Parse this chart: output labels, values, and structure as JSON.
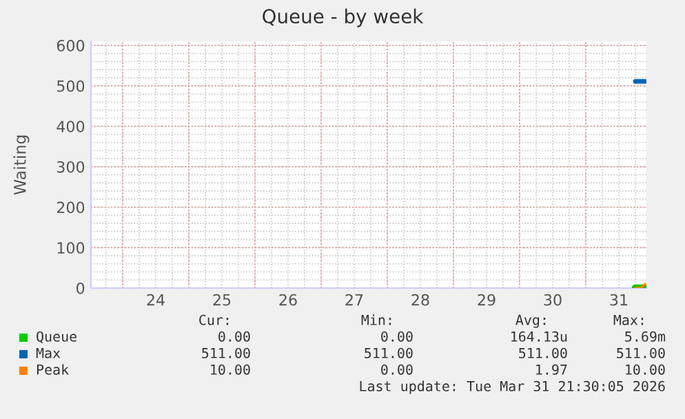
{
  "chart_data": {
    "type": "line",
    "title": "Queue - by week",
    "ylabel": "Waiting",
    "xlim": [
      "2026-03-23T12:30",
      "2026-03-31T22:00"
    ],
    "xticks": [
      {
        "value": "2026-03-24T00:00",
        "label": null
      },
      {
        "value": "2026-03-24T12:00",
        "label": "24"
      },
      {
        "value": "2026-03-25T00:00",
        "label": null
      },
      {
        "value": "2026-03-25T12:00",
        "label": "25"
      },
      {
        "value": "2026-03-26T00:00",
        "label": null
      },
      {
        "value": "2026-03-26T12:00",
        "label": "26"
      },
      {
        "value": "2026-03-27T00:00",
        "label": null
      },
      {
        "value": "2026-03-27T12:00",
        "label": "27"
      },
      {
        "value": "2026-03-28T00:00",
        "label": null
      },
      {
        "value": "2026-03-28T12:00",
        "label": "28"
      },
      {
        "value": "2026-03-29T00:00",
        "label": null
      },
      {
        "value": "2026-03-29T12:00",
        "label": "29"
      },
      {
        "value": "2026-03-30T00:00",
        "label": null
      },
      {
        "value": "2026-03-30T12:00",
        "label": "30"
      },
      {
        "value": "2026-03-31T00:00",
        "label": null
      },
      {
        "value": "2026-03-31T12:00",
        "label": "31"
      }
    ],
    "ylim": [
      0,
      610
    ],
    "yticks": [
      0,
      100,
      200,
      300,
      400,
      500,
      600
    ],
    "grid": true,
    "legend": "bottom left",
    "marker": "none",
    "line_style": "solid",
    "series": [
      {
        "name": "Queue",
        "color": "#00cc00",
        "x": [
          "2026-03-31T18:00",
          "2026-03-31T21:30"
        ],
        "values": [
          0,
          0
        ]
      },
      {
        "name": "Max",
        "color": "#0066b3",
        "x": [
          "2026-03-31T18:00",
          "2026-03-31T21:30"
        ],
        "values": [
          511,
          511
        ]
      },
      {
        "name": "Peak",
        "color": "#ff8000",
        "x": [
          "2026-03-31T18:00",
          "2026-03-31T20:00",
          "2026-03-31T21:30"
        ],
        "values": [
          0,
          0,
          10
        ]
      }
    ],
    "annotations": [
      "Cur:",
      "Min:",
      "Avg:",
      "Max:",
      "0.00",
      "0.00",
      "164.13u",
      "5.69m",
      "511.00",
      "511.00",
      "511.00",
      "511.00",
      "10.00",
      "0.00",
      "1.97",
      "10.00",
      "Last update: Tue Mar 31 21:30:05 2026"
    ]
  }
}
